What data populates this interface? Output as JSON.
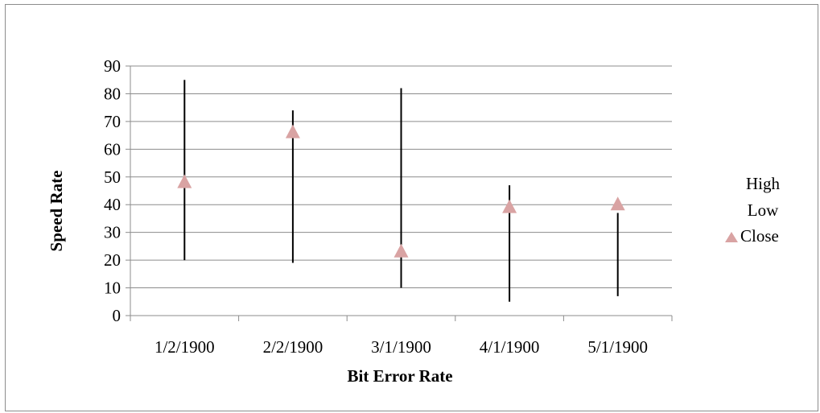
{
  "chart_data": {
    "type": "stock",
    "title": "",
    "xlabel": "Bit Error Rate",
    "ylabel": "Speed Rate",
    "ylim": [
      0,
      90
    ],
    "y_ticks": [
      "0",
      "10",
      "20",
      "30",
      "40",
      "50",
      "60",
      "70",
      "80",
      "90"
    ],
    "categories": [
      "1/2/1900",
      "2/2/1900",
      "3/1/1900",
      "4/1/1900",
      "5/1/1900"
    ],
    "series": [
      {
        "name": "High",
        "values": [
          85,
          74,
          82,
          47,
          37
        ]
      },
      {
        "name": "Low",
        "values": [
          20,
          19,
          10,
          5,
          7
        ]
      },
      {
        "name": "Close",
        "values": [
          48,
          66,
          23,
          39,
          40
        ]
      }
    ],
    "grid": true,
    "legend": "right",
    "colors": {
      "range_line": "#000000",
      "close_marker": "#d9a3a3",
      "grid": "#8c8c8c"
    }
  }
}
